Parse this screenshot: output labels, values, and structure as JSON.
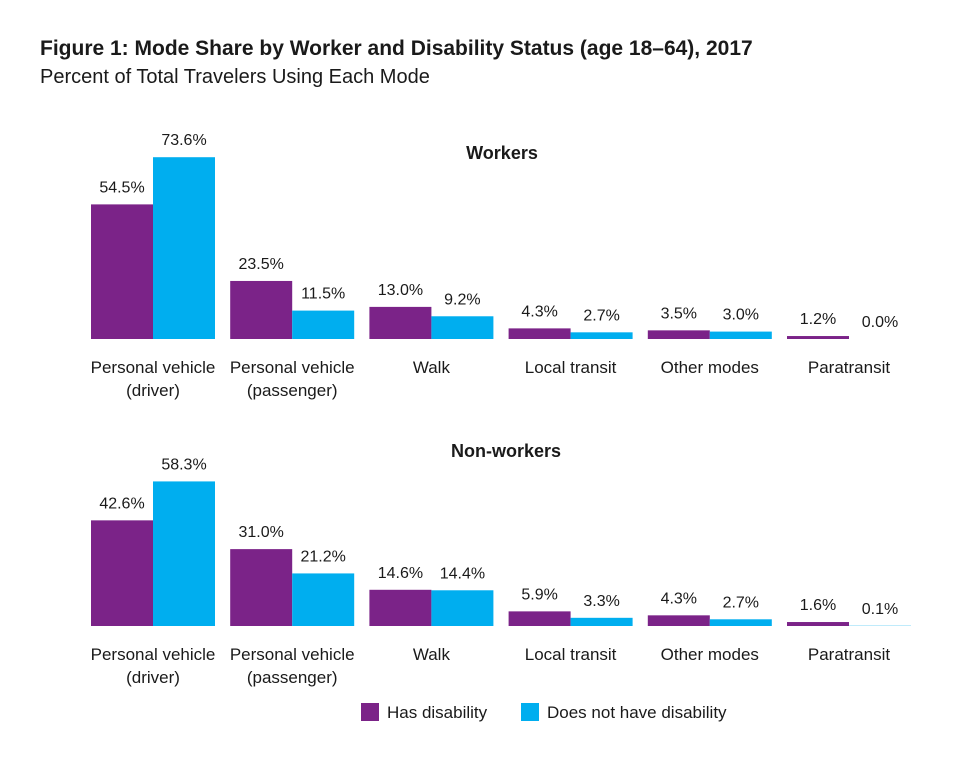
{
  "title": "Figure 1: Mode Share by Worker and Disability Status (age 18–64), 2017",
  "subtitle": "Percent of Total Travelers Using Each Mode",
  "colors": {
    "has_disability": "#7b2388",
    "no_disability": "#00aeef"
  },
  "chart_data": [
    {
      "type": "bar",
      "title": "Workers",
      "categories": [
        "Personal vehicle (driver)",
        "Personal vehicle (passenger)",
        "Walk",
        "Local transit",
        "Other modes",
        "Paratransit"
      ],
      "category_lines": [
        [
          "Personal vehicle",
          "(driver)"
        ],
        [
          "Personal vehicle",
          "(passenger)"
        ],
        [
          "Walk"
        ],
        [
          "Local transit"
        ],
        [
          "Other modes"
        ],
        [
          "Paratransit"
        ]
      ],
      "series": [
        {
          "name": "Has disability",
          "values": [
            54.5,
            23.5,
            13.0,
            4.3,
            3.5,
            1.2
          ],
          "labels": [
            "54.5%",
            "23.5%",
            "13.0%",
            "4.3%",
            "3.5%",
            "1.2%"
          ]
        },
        {
          "name": "Does not have disability",
          "values": [
            73.6,
            11.5,
            9.2,
            2.7,
            3.0,
            0.0
          ],
          "labels": [
            "73.6%",
            "11.5%",
            "9.2%",
            "2.7%",
            "3.0%",
            "0.0%"
          ]
        }
      ]
    },
    {
      "type": "bar",
      "title": "Non-workers",
      "categories": [
        "Personal vehicle (driver)",
        "Personal vehicle (passenger)",
        "Walk",
        "Local transit",
        "Other modes",
        "Paratransit"
      ],
      "category_lines": [
        [
          "Personal vehicle",
          "(driver)"
        ],
        [
          "Personal vehicle",
          "(passenger)"
        ],
        [
          "Walk"
        ],
        [
          "Local transit"
        ],
        [
          "Other modes"
        ],
        [
          "Paratransit"
        ]
      ],
      "series": [
        {
          "name": "Has disability",
          "values": [
            42.6,
            31.0,
            14.6,
            5.9,
            4.3,
            1.6
          ],
          "labels": [
            "42.6%",
            "31.0%",
            "14.6%",
            "5.9%",
            "4.3%",
            "1.6%"
          ]
        },
        {
          "name": "Does not have disability",
          "values": [
            58.3,
            21.2,
            14.4,
            3.3,
            2.7,
            0.1
          ],
          "labels": [
            "58.3%",
            "21.2%",
            "14.4%",
            "3.3%",
            "2.7%",
            "0.1%"
          ]
        }
      ]
    }
  ],
  "legend": [
    {
      "name": "Has disability",
      "color": "#7b2388"
    },
    {
      "name": "Does not have disability",
      "color": "#00aeef"
    }
  ]
}
